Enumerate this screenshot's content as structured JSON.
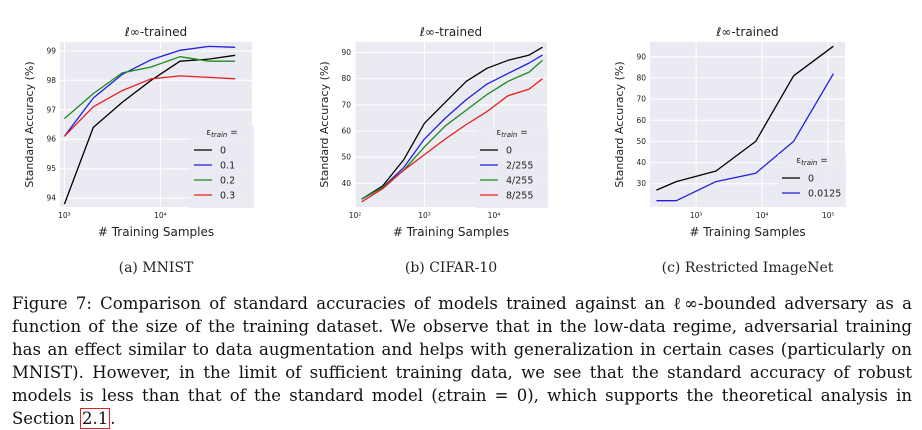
{
  "chart_data": [
    {
      "type": "line",
      "title": "ℓ∞-trained",
      "xlabel": "# Training Samples",
      "ylabel": "Standard Accuracy (%)",
      "subcaption": "(a) MNIST",
      "xscale": "log",
      "xlim": [
        900,
        90000
      ],
      "ylim": [
        93.7,
        99.3
      ],
      "xticks": [
        {
          "v": 1000,
          "label": "10³"
        },
        {
          "v": 10000,
          "label": "10⁴"
        }
      ],
      "yticks": [
        94,
        95,
        96,
        97,
        98,
        99
      ],
      "legend": {
        "title": "εtrain =",
        "position": "right"
      },
      "grid": true,
      "series": [
        {
          "name": "0",
          "color": "#000000",
          "x": [
            1000,
            2000,
            4000,
            8000,
            16000,
            32000,
            60000
          ],
          "y": [
            93.8,
            96.4,
            97.25,
            98.0,
            98.65,
            98.72,
            98.85
          ]
        },
        {
          "name": "0.1",
          "color": "#1f1fe0",
          "x": [
            1000,
            2000,
            4000,
            8000,
            16000,
            32000,
            60000
          ],
          "y": [
            96.1,
            97.4,
            98.2,
            98.7,
            99.02,
            99.15,
            99.12
          ]
        },
        {
          "name": "0.2",
          "color": "#1d8a1d",
          "x": [
            1000,
            2000,
            4000,
            8000,
            16000,
            32000,
            60000
          ],
          "y": [
            96.7,
            97.55,
            98.25,
            98.45,
            98.8,
            98.65,
            98.65
          ]
        },
        {
          "name": "0.3",
          "color": "#e81e1e",
          "x": [
            1000,
            2000,
            4000,
            8000,
            16000,
            32000,
            60000
          ],
          "y": [
            96.1,
            97.1,
            97.65,
            98.05,
            98.15,
            98.1,
            98.05
          ]
        }
      ]
    },
    {
      "type": "line",
      "title": "ℓ∞-trained",
      "xlabel": "# Training Samples",
      "ylabel": "Standard Accuracy (%)",
      "subcaption": "(b) CIFAR-10",
      "xscale": "log",
      "xlim": [
        100,
        58000
      ],
      "ylim": [
        31,
        94
      ],
      "xticks": [
        {
          "v": 100,
          "label": "10²"
        },
        {
          "v": 1000,
          "label": "10³"
        },
        {
          "v": 10000,
          "label": "10⁴"
        }
      ],
      "yticks": [
        40,
        50,
        60,
        70,
        80,
        90
      ],
      "legend": {
        "title": "εtrain =",
        "position": "lower-right"
      },
      "grid": true,
      "series": [
        {
          "name": "0",
          "color": "#000000",
          "x": [
            125,
            250,
            500,
            1000,
            2000,
            4000,
            8000,
            16000,
            32000,
            50000
          ],
          "y": [
            34,
            39,
            49,
            63,
            71,
            79,
            84,
            87,
            89,
            92
          ]
        },
        {
          "name": "2/255",
          "color": "#1f1fe0",
          "x": [
            125,
            250,
            500,
            1000,
            2000,
            4000,
            8000,
            16000,
            32000,
            50000
          ],
          "y": [
            34,
            38.5,
            46,
            57,
            65,
            72,
            78,
            82,
            86,
            89
          ]
        },
        {
          "name": "4/255",
          "color": "#1d8a1d",
          "x": [
            125,
            250,
            500,
            1000,
            2000,
            4000,
            8000,
            16000,
            32000,
            50000
          ],
          "y": [
            34,
            38.5,
            45,
            54,
            62,
            68,
            74,
            79,
            82.5,
            87
          ]
        },
        {
          "name": "8/255",
          "color": "#e81e1e",
          "x": [
            125,
            250,
            500,
            1000,
            2000,
            4000,
            8000,
            16000,
            32000,
            50000
          ],
          "y": [
            33,
            38,
            45,
            51,
            57,
            62.5,
            67.5,
            73.5,
            76,
            80
          ]
        }
      ]
    },
    {
      "type": "line",
      "title": "ℓ∞-trained",
      "xlabel": "# Training Samples",
      "ylabel": "Standard Accuracy (%)",
      "subcaption": "(c) Restricted ImageNet",
      "xscale": "log",
      "xlim": [
        200,
        180000
      ],
      "ylim": [
        19,
        97
      ],
      "xticks": [
        {
          "v": 1000,
          "label": "10³"
        },
        {
          "v": 10000,
          "label": "10⁴"
        },
        {
          "v": 100000,
          "label": "10⁵"
        }
      ],
      "yticks": [
        30,
        40,
        50,
        60,
        70,
        80,
        90
      ],
      "legend": {
        "title": "εtrain =",
        "position": "lower-right"
      },
      "grid": true,
      "series": [
        {
          "name": "0",
          "color": "#000000",
          "x": [
            250,
            500,
            2000,
            8000,
            30000,
            120000
          ],
          "y": [
            27,
            31,
            36,
            50,
            81,
            95
          ]
        },
        {
          "name": "0.0125",
          "color": "#1f1fe0",
          "x": [
            250,
            500,
            2000,
            8000,
            30000,
            120000
          ],
          "y": [
            22,
            22,
            31,
            35,
            50,
            82
          ]
        }
      ]
    }
  ],
  "caption": {
    "part1": "Figure ",
    "fignum": "7",
    "part2": ": Comparison of standard accuracies of models trained against an ℓ∞-bounded adversary as a function of the size of the training dataset. We observe that in the low-data regime, adversarial training has an effect similar to data augmentation and helps with generalization in certain cases (particularly on MNIST). However, in the limit of sufficient training data, we see that the standard accuracy of robust models is less than that of the standard model (εtrain = 0), which supports the theoretical analysis in Section ",
    "ref": "2.1",
    "part3": "."
  }
}
